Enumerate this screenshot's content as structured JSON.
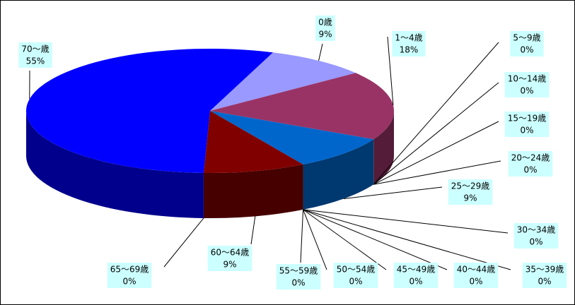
{
  "chart_data": {
    "type": "pie",
    "categories": [
      "0歳",
      "1～4歳",
      "5～9歳",
      "10～14歳",
      "15～19歳",
      "20～24歳",
      "25～29歳",
      "30～34歳",
      "35～39歳",
      "40～44歳",
      "45～49歳",
      "50～54歳",
      "55～59歳",
      "60～64歳",
      "65～69歳",
      "70～歳"
    ],
    "values": [
      9,
      18,
      0,
      0,
      0,
      0,
      9,
      0,
      0,
      0,
      0,
      0,
      0,
      9,
      0,
      55
    ],
    "value_labels": [
      "9%",
      "18%",
      "0%",
      "0%",
      "0%",
      "0%",
      "9%",
      "0%",
      "0%",
      "0%",
      "0%",
      "0%",
      "0%",
      "9%",
      "0%",
      "55%"
    ],
    "colors": [
      "#9999ff",
      "#993366",
      "#ffffcc",
      "#ccffff",
      "#660066",
      "#ff8080",
      "#0066cc",
      "#ccccff",
      "#000080",
      "#ff00ff",
      "#ffff00",
      "#00ffff",
      "#800080",
      "#800000",
      "#008080",
      "#0000ff"
    ]
  }
}
